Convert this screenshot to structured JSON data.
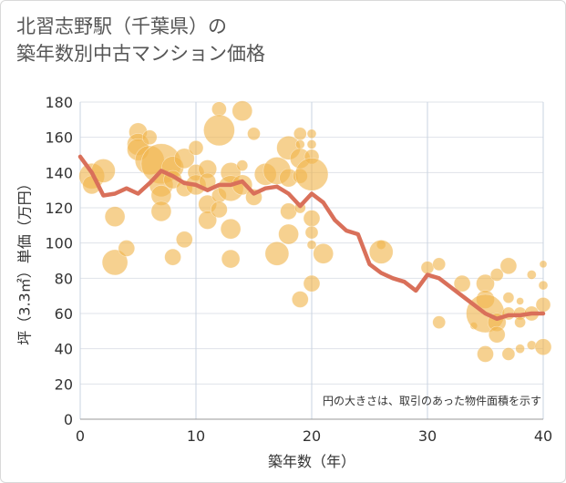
{
  "title_line1": "北習志野駅（千葉県）の",
  "title_line2": "築年数別中古マンション価格",
  "chart_data": {
    "type": "scatter",
    "xlabel": "築年数（年）",
    "ylabel": "坪（3.3㎡）単価（万円）",
    "xlim": [
      0,
      40
    ],
    "ylim": [
      0,
      180
    ],
    "x_ticks": [
      0,
      10,
      20,
      30,
      40
    ],
    "y_ticks": [
      0,
      20,
      40,
      60,
      80,
      100,
      120,
      140,
      160,
      180
    ],
    "grid": true,
    "note": "円の大きさは、取引のあった物件面積を示す",
    "colors": {
      "bubble": "#f0b44c",
      "line": "#d9705a"
    },
    "bubbles": [
      [
        1,
        138,
        14
      ],
      [
        1,
        133,
        10
      ],
      [
        2,
        141,
        13
      ],
      [
        3,
        115,
        11
      ],
      [
        3,
        89,
        14
      ],
      [
        4,
        97,
        9
      ],
      [
        5,
        163,
        10
      ],
      [
        5,
        156,
        12
      ],
      [
        5,
        153,
        12
      ],
      [
        6,
        160,
        8
      ],
      [
        6,
        147,
        16
      ],
      [
        7,
        145,
        22
      ],
      [
        7,
        133,
        13
      ],
      [
        7,
        127,
        11
      ],
      [
        7,
        118,
        11
      ],
      [
        8,
        143,
        12
      ],
      [
        8,
        136,
        10
      ],
      [
        8,
        92,
        9
      ],
      [
        9,
        148,
        11
      ],
      [
        9,
        131,
        9
      ],
      [
        9,
        102,
        9
      ],
      [
        10,
        154,
        8
      ],
      [
        10,
        140,
        9
      ],
      [
        10,
        133,
        11
      ],
      [
        11,
        142,
        10
      ],
      [
        11,
        135,
        9
      ],
      [
        11,
        122,
        10
      ],
      [
        11,
        113,
        10
      ],
      [
        12,
        176,
        8
      ],
      [
        12,
        164,
        17
      ],
      [
        12,
        127,
        8
      ],
      [
        12,
        119,
        9
      ],
      [
        13,
        140,
        11
      ],
      [
        13,
        131,
        14
      ],
      [
        13,
        108,
        11
      ],
      [
        13,
        91,
        10
      ],
      [
        14,
        175,
        11
      ],
      [
        14,
        144,
        6
      ],
      [
        14,
        133,
        11
      ],
      [
        15,
        162,
        7
      ],
      [
        15,
        126,
        9
      ],
      [
        16,
        139,
        12
      ],
      [
        17,
        141,
        15
      ],
      [
        17,
        94,
        13
      ],
      [
        18,
        154,
        13
      ],
      [
        18,
        137,
        10
      ],
      [
        18,
        118,
        9
      ],
      [
        18,
        105,
        11
      ],
      [
        19,
        162,
        7
      ],
      [
        19,
        156,
        5
      ],
      [
        19,
        148,
        11
      ],
      [
        19,
        138,
        8
      ],
      [
        19,
        120,
        6
      ],
      [
        19,
        68,
        9
      ],
      [
        20,
        162,
        5
      ],
      [
        20,
        156,
        5
      ],
      [
        20,
        149,
        8
      ],
      [
        20,
        139,
        18
      ],
      [
        20,
        114,
        9
      ],
      [
        20,
        106,
        7
      ],
      [
        20,
        99,
        5
      ],
      [
        20,
        77,
        9
      ],
      [
        21,
        94,
        11
      ],
      [
        26,
        99,
        5
      ],
      [
        26,
        95,
        13
      ],
      [
        30,
        86,
        7
      ],
      [
        31,
        88,
        7
      ],
      [
        31,
        55,
        7
      ],
      [
        33,
        77,
        9
      ],
      [
        34,
        53,
        4
      ],
      [
        35,
        77,
        10
      ],
      [
        35,
        68,
        10
      ],
      [
        35,
        60,
        21
      ],
      [
        35,
        37,
        9
      ],
      [
        36,
        82,
        7
      ],
      [
        36,
        55,
        10
      ],
      [
        36,
        48,
        9
      ],
      [
        37,
        87,
        9
      ],
      [
        37,
        69,
        6
      ],
      [
        37,
        60,
        7
      ],
      [
        37,
        37,
        7
      ],
      [
        38,
        67,
        4
      ],
      [
        38,
        60,
        7
      ],
      [
        38,
        55,
        6
      ],
      [
        38,
        40,
        5
      ],
      [
        39,
        82,
        5
      ],
      [
        39,
        60,
        8
      ],
      [
        39,
        42,
        5
      ],
      [
        40,
        88,
        4
      ],
      [
        40,
        76,
        5
      ],
      [
        40,
        65,
        8
      ],
      [
        40,
        41,
        9
      ]
    ],
    "line": [
      [
        0,
        149
      ],
      [
        1,
        140
      ],
      [
        2,
        127
      ],
      [
        3,
        128
      ],
      [
        4,
        131
      ],
      [
        5,
        128
      ],
      [
        6,
        134
      ],
      [
        7,
        141
      ],
      [
        8,
        138
      ],
      [
        9,
        134
      ],
      [
        10,
        133
      ],
      [
        11,
        130
      ],
      [
        12,
        133
      ],
      [
        13,
        133
      ],
      [
        14,
        135
      ],
      [
        15,
        128
      ],
      [
        16,
        131
      ],
      [
        17,
        132
      ],
      [
        18,
        128
      ],
      [
        19,
        121
      ],
      [
        20,
        128
      ],
      [
        21,
        123
      ],
      [
        22,
        113
      ],
      [
        23,
        107
      ],
      [
        24,
        105
      ],
      [
        25,
        88
      ],
      [
        26,
        83
      ],
      [
        27,
        80
      ],
      [
        28,
        78
      ],
      [
        29,
        73
      ],
      [
        30,
        82
      ],
      [
        31,
        80
      ],
      [
        32,
        75
      ],
      [
        33,
        70
      ],
      [
        34,
        65
      ],
      [
        35,
        60
      ],
      [
        36,
        57
      ],
      [
        37,
        59
      ],
      [
        38,
        59
      ],
      [
        39,
        60
      ],
      [
        40,
        60
      ]
    ]
  }
}
